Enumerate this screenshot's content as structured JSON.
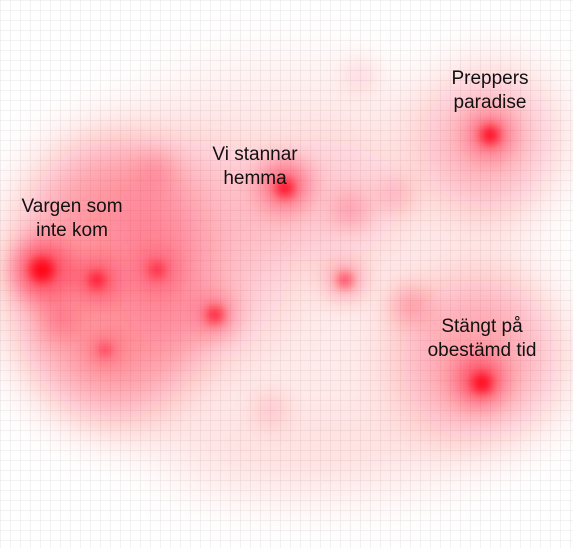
{
  "labels": [
    {
      "lines": [
        "Preppers",
        "paradise"
      ]
    },
    {
      "lines": [
        "Vi stannar",
        "hemma"
      ]
    },
    {
      "lines": [
        "Vargen som",
        "inte kom"
      ]
    },
    {
      "lines": [
        "Stängt på",
        "obestämd tid"
      ]
    }
  ]
}
